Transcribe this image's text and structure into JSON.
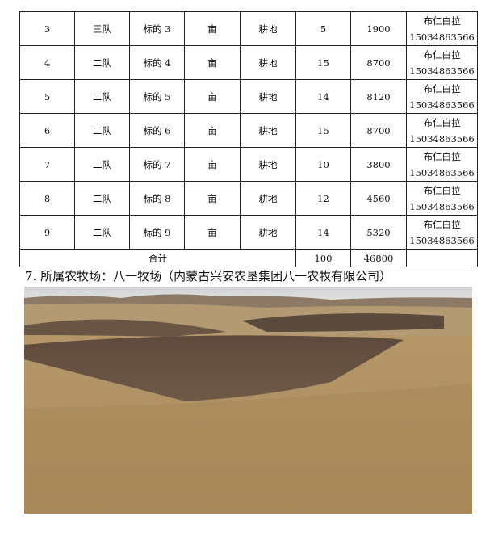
{
  "table": {
    "rows": [
      {
        "no": "3",
        "team": "三队",
        "lot": "标的 3",
        "unit": "亩",
        "type": "耕地",
        "area": "5",
        "amount": "1900",
        "contact_name": "布仁白拉",
        "contact_phone": "15034863566"
      },
      {
        "no": "4",
        "team": "二队",
        "lot": "标的 4",
        "unit": "亩",
        "type": "耕地",
        "area": "15",
        "amount": "8700",
        "contact_name": "布仁白拉",
        "contact_phone": "15034863566"
      },
      {
        "no": "5",
        "team": "二队",
        "lot": "标的 5",
        "unit": "亩",
        "type": "耕地",
        "area": "14",
        "amount": "8120",
        "contact_name": "布仁白拉",
        "contact_phone": "15034863566"
      },
      {
        "no": "6",
        "team": "二队",
        "lot": "标的 6",
        "unit": "亩",
        "type": "耕地",
        "area": "15",
        "amount": "8700",
        "contact_name": "布仁白拉",
        "contact_phone": "15034863566"
      },
      {
        "no": "7",
        "team": "二队",
        "lot": "标的 7",
        "unit": "亩",
        "type": "耕地",
        "area": "10",
        "amount": "3800",
        "contact_name": "布仁白拉",
        "contact_phone": "15034863566"
      },
      {
        "no": "8",
        "team": "二队",
        "lot": "标的 8",
        "unit": "亩",
        "type": "耕地",
        "area": "12",
        "amount": "4560",
        "contact_name": "布仁白拉",
        "contact_phone": "15034863566"
      },
      {
        "no": "9",
        "team": "二队",
        "lot": "标的 9",
        "unit": "亩",
        "type": "耕地",
        "area": "14",
        "amount": "5320",
        "contact_name": "布仁白拉",
        "contact_phone": "15034863566"
      }
    ],
    "total": {
      "label": "合计",
      "area": "100",
      "amount": "46800"
    }
  },
  "caption": "7. 所属农牧场：八一牧场（内蒙古兴安农垦集团八一农牧有限公司）"
}
